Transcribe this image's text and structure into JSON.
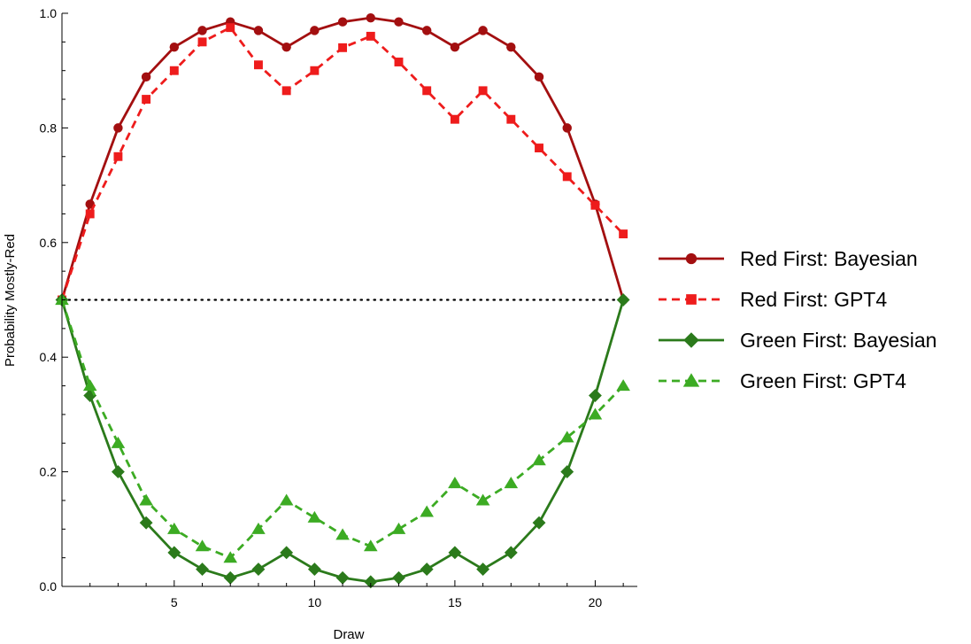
{
  "chart_data": {
    "type": "line",
    "title": "",
    "xlabel": "Draw",
    "ylabel": "Probability Mostly-Red",
    "xlim": [
      1,
      21.5
    ],
    "ylim": [
      0,
      1
    ],
    "x_ticks": [
      5,
      10,
      15,
      20
    ],
    "y_ticks": [
      0.0,
      0.2,
      0.4,
      0.6,
      0.8,
      1.0
    ],
    "y_tick_labels": [
      "0.0",
      "0.2",
      "0.4",
      "0.6",
      "0.8",
      "1.0"
    ],
    "grid": false,
    "legend_position": "right",
    "reference_line": {
      "y": 0.5,
      "style": "dotted",
      "color": "#000000"
    },
    "x": [
      1,
      2,
      3,
      4,
      5,
      6,
      7,
      8,
      9,
      10,
      11,
      12,
      13,
      14,
      15,
      16,
      17,
      18,
      19,
      20,
      21
    ],
    "series": [
      {
        "name": "Red First: Bayesian",
        "color": "#a30f10",
        "dash": "solid",
        "marker": "circle",
        "values": [
          0.5,
          0.667,
          0.8,
          0.889,
          0.941,
          0.97,
          0.985,
          0.97,
          0.941,
          0.97,
          0.985,
          0.992,
          0.985,
          0.97,
          0.941,
          0.97,
          0.941,
          0.889,
          0.8,
          0.667,
          0.5
        ]
      },
      {
        "name": "Red First: GPT4",
        "color": "#ee1c1c",
        "dash": "dashed",
        "marker": "square",
        "values": [
          0.5,
          0.65,
          0.75,
          0.85,
          0.9,
          0.95,
          0.975,
          0.91,
          0.865,
          0.9,
          0.94,
          0.96,
          0.915,
          0.865,
          0.815,
          0.865,
          0.815,
          0.765,
          0.715,
          0.665,
          0.615
        ]
      },
      {
        "name": "Green First: Bayesian",
        "color": "#2b7a1b",
        "dash": "solid",
        "marker": "diamond",
        "values": [
          0.5,
          0.333,
          0.2,
          0.111,
          0.059,
          0.03,
          0.015,
          0.03,
          0.059,
          0.03,
          0.015,
          0.008,
          0.015,
          0.03,
          0.059,
          0.03,
          0.059,
          0.111,
          0.2,
          0.333,
          0.5
        ]
      },
      {
        "name": "Green First: GPT4",
        "color": "#3cab23",
        "dash": "dashed",
        "marker": "triangle",
        "values": [
          0.5,
          0.35,
          0.25,
          0.15,
          0.1,
          0.07,
          0.05,
          0.1,
          0.15,
          0.12,
          0.09,
          0.07,
          0.1,
          0.13,
          0.18,
          0.15,
          0.18,
          0.22,
          0.26,
          0.3,
          0.35
        ]
      }
    ]
  }
}
